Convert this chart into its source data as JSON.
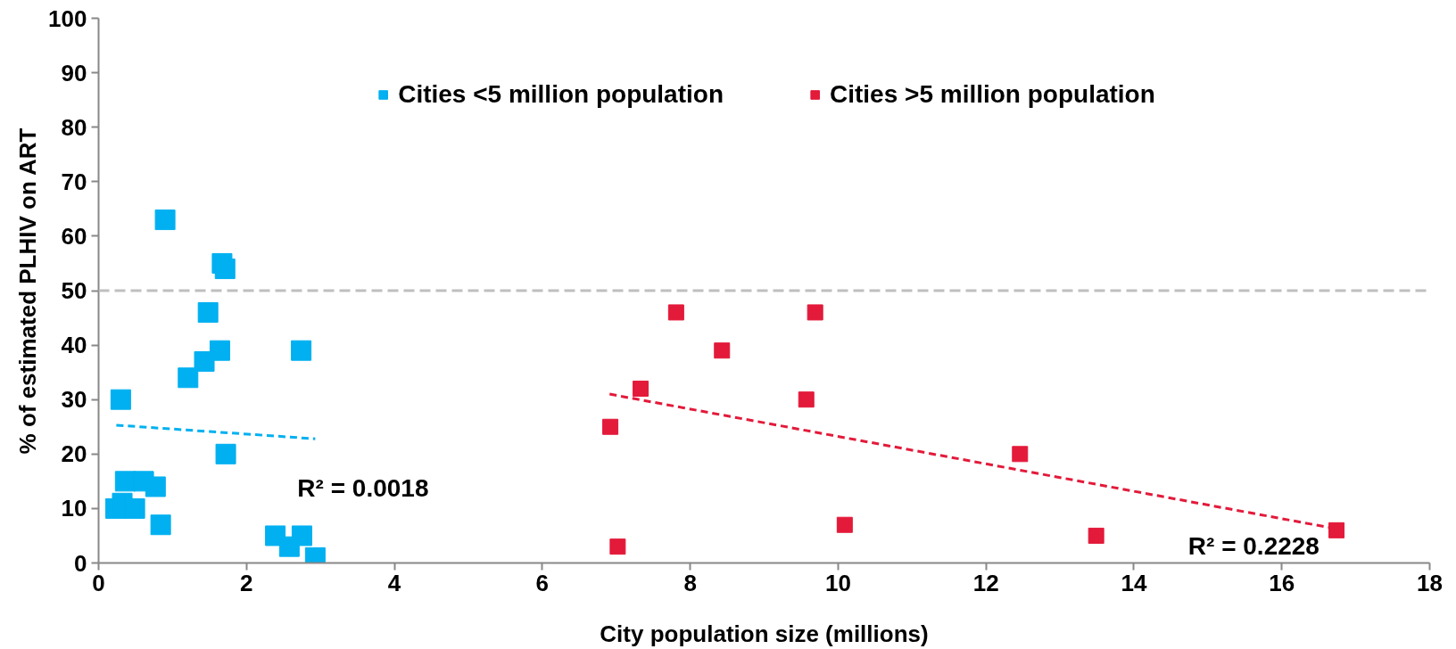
{
  "chart_data": {
    "type": "scatter",
    "xlabel": "City population size (millions)",
    "ylabel": "% of estimated PLHIV on ART",
    "xlim": [
      0,
      18
    ],
    "xticks": [
      0,
      2,
      4,
      6,
      8,
      10,
      12,
      14,
      16,
      18
    ],
    "ylim": [
      0,
      100
    ],
    "yticks": [
      0,
      10,
      20,
      30,
      40,
      50,
      60,
      70,
      80,
      90,
      100
    ],
    "grid": false,
    "legend": "top",
    "series": [
      {
        "name": "Cities <5 million population",
        "marker": "square",
        "color": "#00b0f0",
        "x": [
          0.9,
          1.67,
          1.71,
          1.48,
          1.64,
          1.43,
          1.21,
          2.74,
          0.3,
          1.72,
          0.36,
          0.61,
          0.77,
          0.23,
          0.32,
          0.49,
          0.84,
          2.39,
          2.75,
          2.58,
          2.93
        ],
        "values": [
          63,
          55,
          54,
          46,
          39,
          37,
          34,
          39,
          30,
          20,
          15,
          15,
          14,
          10,
          11,
          10,
          7,
          5,
          5,
          3,
          1
        ]
      },
      {
        "name": "Cities >5 million population",
        "marker": "square",
        "color": "#e31a3a",
        "x": [
          6.92,
          7.02,
          7.33,
          7.81,
          8.43,
          9.57,
          9.69,
          10.09,
          12.46,
          13.49,
          16.74
        ],
        "values": [
          25,
          3,
          32,
          46,
          39,
          30,
          46,
          7,
          20,
          5,
          6
        ]
      },
      {
        "type": "line",
        "line_style": "dashed",
        "marker": "none",
        "color": "#00b0f0",
        "x": [
          0.24,
          2.93
        ],
        "values": [
          25.3,
          22.8
        ]
      },
      {
        "type": "line",
        "line_style": "dashed",
        "marker": "none",
        "color": "#e31a3a",
        "x": [
          6.91,
          16.69
        ],
        "values": [
          31.0,
          6.4
        ]
      }
    ],
    "ref_lines": [
      {
        "axis": "y",
        "value": 50,
        "color": "#bfbfbf",
        "line_style": "dashed"
      }
    ],
    "annotations": [
      "R² = 0.0018",
      "R² = 0.2228"
    ]
  }
}
